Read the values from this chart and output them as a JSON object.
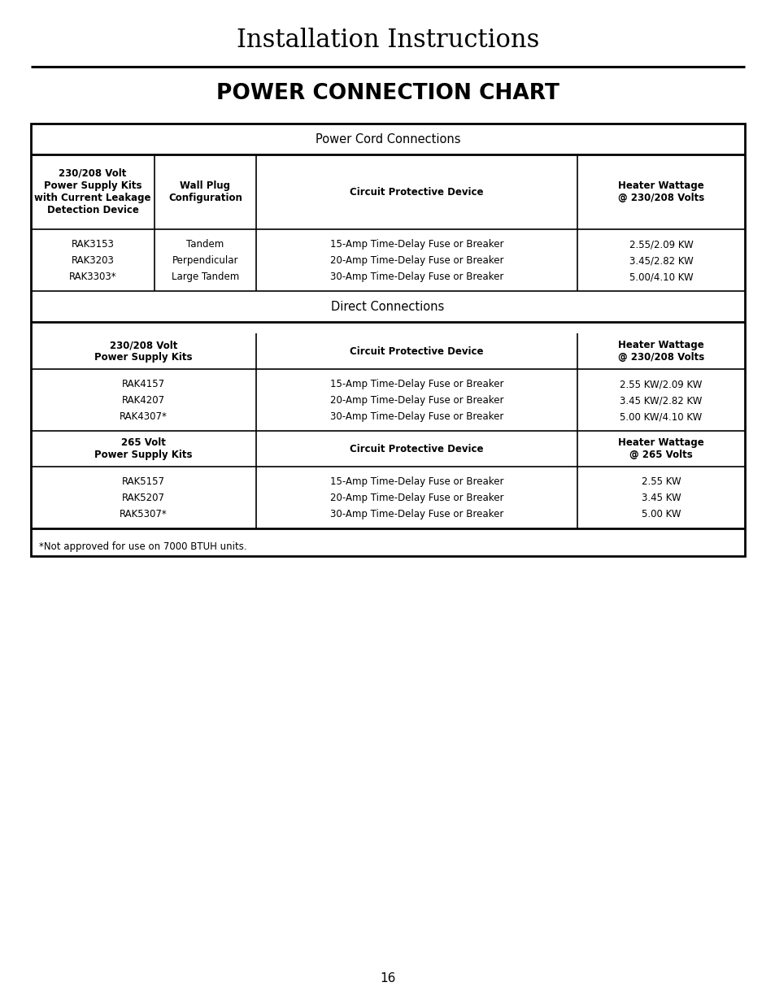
{
  "title": "Installation Instructions",
  "subtitle": "POWER CONNECTION CHART",
  "page_number": "16",
  "bg_color": "#ffffff",
  "section1_title": "Power Cord Connections",
  "section2_title": "Direct Connections",
  "footnote": "*Not approved for use on 7000 BTUH units.",
  "pcc_col1_header": "230/208 Volt\nPower Supply Kits\nwith Current Leakage\nDetection Device",
  "pcc_col2_header": "Wall Plug\nConfiguration",
  "pcc_col3_header": "Circuit Protective Device",
  "pcc_col4_header": "Heater Wattage\n@ 230/208 Volts",
  "pcc_rows": [
    [
      "RAK3153",
      "Tandem",
      "15-Amp Time-Delay Fuse or Breaker",
      "2.55/2.09 KW"
    ],
    [
      "RAK3203",
      "Perpendicular",
      "20-Amp Time-Delay Fuse or Breaker",
      "3.45/2.82 KW"
    ],
    [
      "RAK3303*",
      "Large Tandem",
      "30-Amp Time-Delay Fuse or Breaker",
      "5.00/4.10 KW"
    ]
  ],
  "dc_230_col1_header": "230/208 Volt\nPower Supply Kits",
  "dc_230_col2_header": "Circuit Protective Device",
  "dc_230_col3_header": "Heater Wattage\n@ 230/208 Volts",
  "dc_230_rows": [
    [
      "RAK4157",
      "15-Amp Time-Delay Fuse or Breaker",
      "2.55 KW/2.09 KW"
    ],
    [
      "RAK4207",
      "20-Amp Time-Delay Fuse or Breaker",
      "3.45 KW/2.82 KW"
    ],
    [
      "RAK4307*",
      "30-Amp Time-Delay Fuse or Breaker",
      "5.00 KW/4.10 KW"
    ]
  ],
  "dc_265_col1_header": "265 Volt\nPower Supply Kits",
  "dc_265_col2_header": "Circuit Protective Device",
  "dc_265_col3_header": "Heater Wattage\n@ 265 Volts",
  "dc_265_rows": [
    [
      "RAK5157",
      "15-Amp Time-Delay Fuse or Breaker",
      "2.55 KW"
    ],
    [
      "RAK5207",
      "20-Amp Time-Delay Fuse or Breaker",
      "3.45 KW"
    ],
    [
      "RAK5307*",
      "30-Amp Time-Delay Fuse or Breaker",
      "5.00 KW"
    ]
  ],
  "fig_width": 9.54,
  "fig_height": 12.35,
  "dpi": 100
}
